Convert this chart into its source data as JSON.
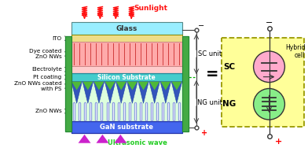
{
  "fig_width": 3.92,
  "fig_height": 1.88,
  "dpi": 100,
  "bg_color": "#ffffff",
  "glass_color": "#99eeff",
  "glass_label": "Glass",
  "ito_color": "#eedd88",
  "dye_zno_color": "#ffaaaa",
  "pt_color": "#44cccc",
  "silicon_label": "Silicon Substrate",
  "gan_color": "#4466ee",
  "gan_label": "GaN substrate",
  "sunlight_color": "#ff1111",
  "sunlight_label": "Sunlight",
  "ultrasonic_color": "#22cc22",
  "ultrasonic_label": "Ultrasonic wave",
  "arrow_purple_color": "#cc22cc",
  "sc_unit_label": "SC unit",
  "ng_unit_label": "NG unit",
  "plus_color": "#ff0000",
  "hybrid_label": "Hybrid\ncell",
  "sc_label": "SC",
  "ng_label": "NG",
  "sc_circle_color": "#ffaacc",
  "ng_circle_color": "#88ee88",
  "hybrid_box_color": "#ffff99",
  "hybrid_box_border": "#999900",
  "ito_label": "ITO",
  "dye_label": "Dye coated\nZnO NWs",
  "electrolyte_label": "Electrolyte",
  "pt_label": "Pt coating",
  "znops_label": "ZnO NWs coated\nwith PS",
  "zno_label": "ZnO NWs",
  "outer_green": "#88cc88",
  "side_green": "#44aa44"
}
